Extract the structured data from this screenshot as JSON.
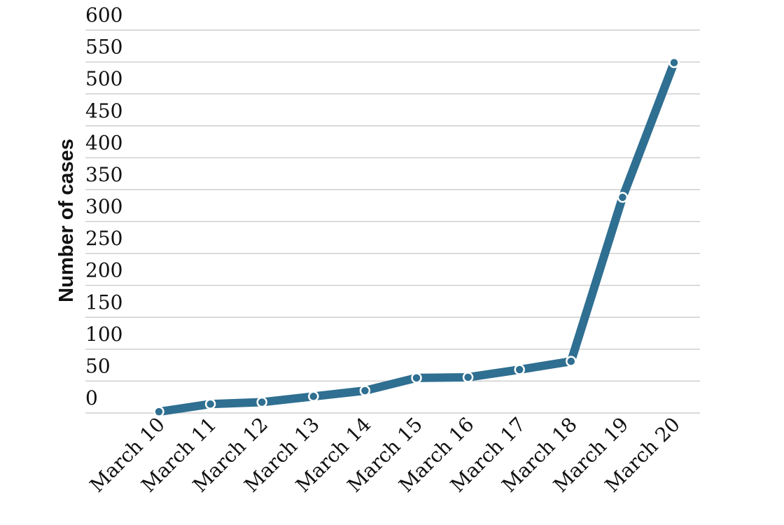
{
  "chart_data": {
    "type": "line",
    "y_label": "Number of cases",
    "categories": [
      "March 10",
      "March 11",
      "March 12",
      "March 13",
      "March 14",
      "March 15",
      "March 16",
      "March 17",
      "March 18",
      "March 19",
      "March 20"
    ],
    "series": [
      {
        "color": "#2f6f91",
        "values": [
          2,
          14,
          17,
          26,
          35,
          55,
          56,
          68,
          81,
          338,
          549
        ]
      }
    ],
    "ylim": [
      0,
      600
    ],
    "yticks": [
      0,
      50,
      100,
      150,
      200,
      250,
      300,
      350,
      400,
      450,
      500,
      550,
      600
    ],
    "grid": true
  }
}
